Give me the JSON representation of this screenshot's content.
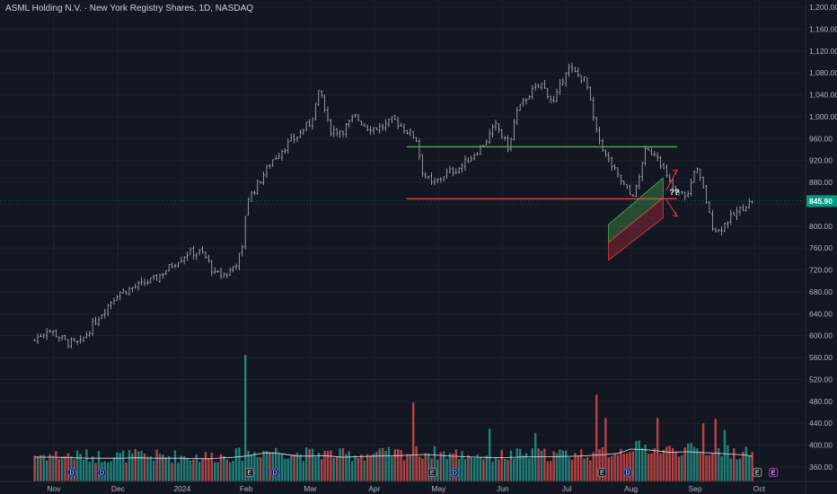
{
  "chart_data": {
    "type": "candlestick",
    "title": "ASML Holding N.V. · New York Registry Shares, 1D, NASDAQ",
    "y_axis_ticks": [
      "1,200.00",
      "1,160.00",
      "1,120.00",
      "1,080.00",
      "1,040.00",
      "1,000.00",
      "960.00",
      "920.00",
      "880.00",
      "840.00",
      "800.00",
      "760.00",
      "720.00",
      "680.00",
      "640.00",
      "600.00",
      "560.00",
      "520.00",
      "480.00",
      "440.00",
      "400.00",
      "360.00"
    ],
    "ylim": [
      350,
      1206
    ],
    "x_axis_ticks": [
      "Nov",
      "Dec",
      "2024",
      "Feb",
      "Mar",
      "Apr",
      "May",
      "Jun",
      "Jul",
      "Aug",
      "Sep",
      "Oct"
    ],
    "last_price_label": "845.90",
    "last_price": 845.9,
    "annotations": {
      "question_marks": "??",
      "resistance_level": 945,
      "support_level": 850,
      "channel_upper": [
        [
          8.65,
          803
        ],
        [
          9.5,
          888
        ]
      ],
      "channel_lower": [
        [
          8.65,
          738
        ],
        [
          9.5,
          815
        ]
      ]
    },
    "price_path": [
      [
        -0.3,
        592
      ],
      [
        -0.1,
        612
      ],
      [
        0.0,
        605
      ],
      [
        0.2,
        588
      ],
      [
        0.4,
        585
      ],
      [
        0.6,
        618
      ],
      [
        0.8,
        650
      ],
      [
        1.0,
        678
      ],
      [
        1.3,
        690
      ],
      [
        1.6,
        705
      ],
      [
        1.9,
        735
      ],
      [
        2.1,
        752
      ],
      [
        2.3,
        752
      ],
      [
        2.4,
        738
      ],
      [
        2.5,
        712
      ],
      [
        2.7,
        712
      ],
      [
        2.85,
        735
      ],
      [
        2.95,
        760
      ],
      [
        3.0,
        845
      ],
      [
        3.2,
        880
      ],
      [
        3.4,
        920
      ],
      [
        3.6,
        945
      ],
      [
        3.8,
        965
      ],
      [
        4.0,
        990
      ],
      [
        4.15,
        1050
      ],
      [
        4.3,
        975
      ],
      [
        4.5,
        975
      ],
      [
        4.7,
        1000
      ],
      [
        4.9,
        980
      ],
      [
        5.1,
        980
      ],
      [
        5.3,
        995
      ],
      [
        5.5,
        975
      ],
      [
        5.65,
        960
      ],
      [
        5.75,
        900
      ],
      [
        5.9,
        875
      ],
      [
        6.1,
        895
      ],
      [
        6.3,
        905
      ],
      [
        6.5,
        925
      ],
      [
        6.7,
        950
      ],
      [
        6.9,
        985
      ],
      [
        7.1,
        940
      ],
      [
        7.2,
        1005
      ],
      [
        7.4,
        1040
      ],
      [
        7.6,
        1060
      ],
      [
        7.8,
        1025
      ],
      [
        8.0,
        1090
      ],
      [
        8.3,
        1065
      ],
      [
        8.45,
        975
      ],
      [
        8.6,
        930
      ],
      [
        8.8,
        890
      ],
      [
        9.0,
        855
      ],
      [
        9.1,
        870
      ],
      [
        9.2,
        935
      ],
      [
        9.4,
        935
      ],
      [
        9.55,
        890
      ],
      [
        9.7,
        860
      ],
      [
        9.9,
        858
      ],
      [
        10.0,
        912
      ],
      [
        10.15,
        860
      ],
      [
        10.25,
        805
      ],
      [
        10.35,
        790
      ],
      [
        10.5,
        810
      ],
      [
        10.8,
        840
      ],
      [
        10.9,
        845.9
      ]
    ],
    "volume_path": [
      [
        -0.3,
        378
      ],
      [
        0.0,
        378
      ],
      [
        0.3,
        377
      ],
      [
        0.6,
        376
      ],
      [
        1.0,
        376
      ],
      [
        1.3,
        377
      ],
      [
        1.6,
        376
      ],
      [
        2.0,
        376
      ],
      [
        2.4,
        375
      ],
      [
        2.8,
        378
      ],
      [
        3.0,
        380
      ],
      [
        3.3,
        386
      ],
      [
        3.5,
        385
      ],
      [
        3.8,
        380
      ],
      [
        4.0,
        380
      ],
      [
        4.2,
        381
      ],
      [
        4.5,
        378
      ],
      [
        5.0,
        380
      ],
      [
        5.4,
        381
      ],
      [
        5.8,
        383
      ],
      [
        6.2,
        380
      ],
      [
        6.6,
        378
      ],
      [
        7.0,
        377
      ],
      [
        7.4,
        379
      ],
      [
        7.8,
        379
      ],
      [
        8.2,
        380
      ],
      [
        8.5,
        382
      ],
      [
        8.8,
        385
      ],
      [
        9.0,
        393
      ],
      [
        9.3,
        391
      ],
      [
        9.6,
        387
      ],
      [
        9.9,
        388
      ],
      [
        10.2,
        386
      ],
      [
        10.5,
        384
      ],
      [
        10.8,
        382
      ],
      [
        10.9,
        379
      ]
    ],
    "volume_spikes": [
      [
        3.0,
        565
      ],
      [
        5.6,
        478
      ],
      [
        8.45,
        492
      ],
      [
        8.6,
        450
      ],
      [
        9.4,
        450
      ],
      [
        10.15,
        440
      ],
      [
        10.3,
        448
      ],
      [
        10.45,
        428
      ],
      [
        7.5,
        422
      ],
      [
        6.8,
        430
      ]
    ],
    "event_markers": [
      {
        "x": 0.28,
        "type": "D",
        "color": "#2962ff"
      },
      {
        "x": 0.75,
        "type": "D",
        "color": "#2962ff"
      },
      {
        "x": 3.05,
        "type": "E",
        "color": "#787b86"
      },
      {
        "x": 3.45,
        "type": "D",
        "color": "#2962ff"
      },
      {
        "x": 5.9,
        "type": "E",
        "color": "#787b86"
      },
      {
        "x": 6.25,
        "type": "D",
        "color": "#2962ff"
      },
      {
        "x": 8.55,
        "type": "E",
        "color": "#787b86"
      },
      {
        "x": 8.95,
        "type": "D",
        "color": "#2962ff"
      },
      {
        "x": 10.97,
        "type": "E",
        "color": "#787b86"
      },
      {
        "x": 11.22,
        "type": "E",
        "color": "#9c27b0"
      }
    ],
    "colors": {
      "background": "#131722",
      "up": "#d1d4dc",
      "down": "#d1d4dc",
      "volume_up": "#26a69a",
      "volume_down": "#ef5350",
      "resistance": "#4caf50",
      "support": "#f23645",
      "channel_fill_top": "#4caf50",
      "channel_fill_bottom": "#f23645",
      "price_label_bg": "#089981",
      "grid": "#1e222d"
    }
  }
}
